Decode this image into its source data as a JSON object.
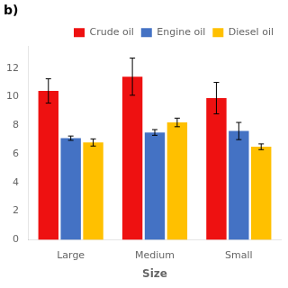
{
  "chart_data": {
    "type": "bar",
    "xlabel": "Size",
    "annotations": [
      "b)"
    ],
    "categories": [
      "Large",
      "Medium",
      "Small"
    ],
    "series": [
      {
        "name": "Crude oil",
        "color": "#ee1111",
        "values": [
          10.4,
          11.4,
          9.9
        ],
        "errors": [
          0.85,
          1.3,
          1.1
        ]
      },
      {
        "name": "Engine oil",
        "color": "#4472c4",
        "values": [
          7.1,
          7.5,
          7.6
        ],
        "errors": [
          0.15,
          0.2,
          0.6
        ]
      },
      {
        "name": "Diesel oil",
        "color": "#ffc000",
        "values": [
          6.8,
          8.2,
          6.5
        ],
        "errors": [
          0.25,
          0.3,
          0.2
        ]
      }
    ],
    "ylim": [
      0,
      13.5
    ],
    "yticks": [
      0,
      2,
      4,
      6,
      8,
      10,
      12
    ],
    "grid": false,
    "legend": "upper right"
  }
}
